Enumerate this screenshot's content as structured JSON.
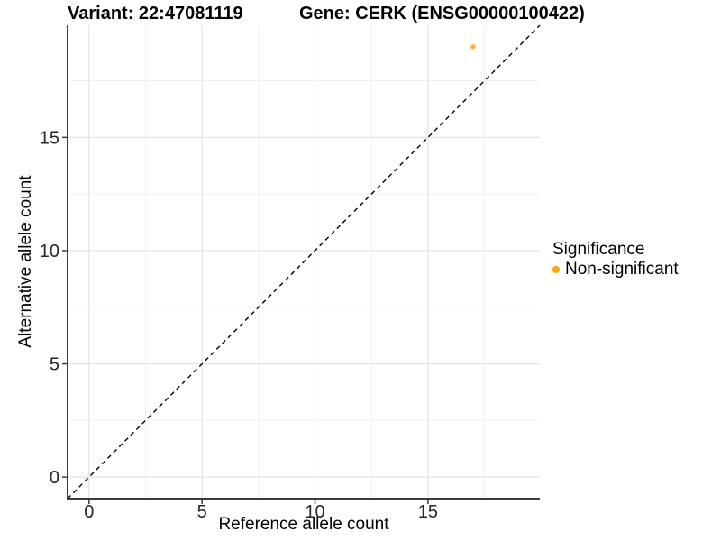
{
  "chart_data": {
    "type": "scatter",
    "title_left": "Variant: 22:47081119",
    "title_right": "Gene: CERK (ENSG00000100422)",
    "xlabel": "Reference allele count",
    "ylabel": "Alternative allele count",
    "xlim": [
      -0.95,
      19.95
    ],
    "ylim": [
      -0.95,
      19.95
    ],
    "x_major_ticks": [
      0,
      5,
      10,
      15
    ],
    "y_major_ticks": [
      0,
      5,
      10,
      15
    ],
    "x_minor_ticks": [
      2.5,
      7.5,
      12.5,
      17.5
    ],
    "y_minor_ticks": [
      2.5,
      7.5,
      12.5,
      17.5
    ],
    "grid": "major-and-minor",
    "reference_line": {
      "kind": "identity-y-equals-x",
      "style": "dashed",
      "color": "#000000"
    },
    "series": [
      {
        "name": "Non-significant",
        "color": "#FFA500",
        "point_opacity": 0.82,
        "points": [
          {
            "x": 17,
            "y": 19
          }
        ]
      }
    ],
    "legend": {
      "title": "Significance",
      "position": "right",
      "entries": [
        {
          "label": "Non-significant",
          "color": "#FFA500"
        }
      ]
    },
    "colors": {
      "background": "#ffffff",
      "grid_major": "#e3e3e3",
      "grid_minor": "#f0f0f0",
      "axis_line": "#3c3c3c",
      "tick_text": "#262626",
      "point": "#FFA500"
    }
  }
}
